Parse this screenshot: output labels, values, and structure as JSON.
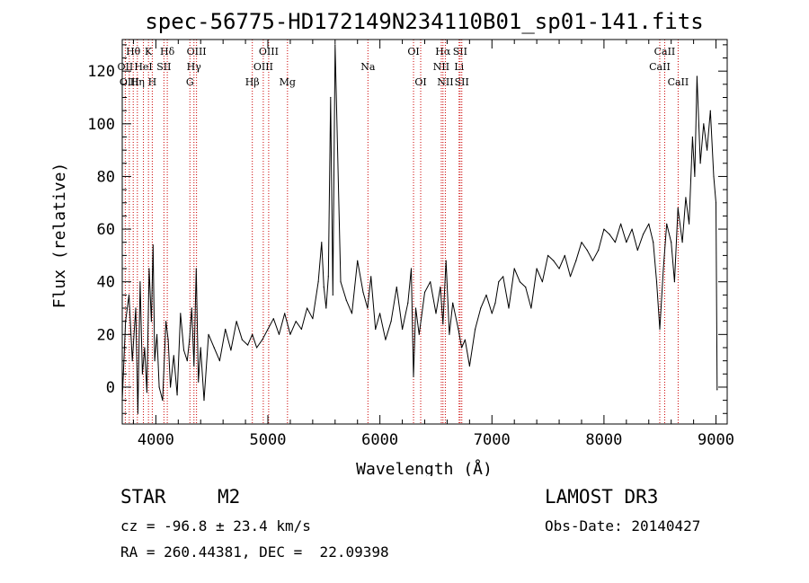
{
  "chart_data": {
    "type": "line",
    "title": "spec-56775-HD172149N234110B01_sp01-141.fits",
    "xlabel": "Wavelength (Å)",
    "ylabel": "Flux (relative)",
    "xlim": [
      3700,
      9100
    ],
    "ylim": [
      -14,
      132
    ],
    "xticks": [
      4000,
      5000,
      6000,
      7000,
      8000,
      9000
    ],
    "yticks": [
      0,
      20,
      40,
      60,
      80,
      100,
      120
    ],
    "xtick_labels": [
      "4000",
      "5000",
      "6000",
      "7000",
      "8000",
      "9000"
    ],
    "ytick_labels": [
      "0",
      "20",
      "40",
      "60",
      "80",
      "100",
      "120"
    ],
    "series": [
      {
        "name": "flux",
        "x": [
          3700,
          3730,
          3760,
          3790,
          3820,
          3840,
          3860,
          3880,
          3900,
          3920,
          3940,
          3960,
          3975,
          3990,
          4010,
          4030,
          4060,
          4090,
          4110,
          4130,
          4160,
          4190,
          4220,
          4250,
          4280,
          4300,
          4320,
          4340,
          4360,
          4380,
          4400,
          4430,
          4470,
          4520,
          4570,
          4620,
          4670,
          4720,
          4770,
          4820,
          4861,
          4900,
          4950,
          5000,
          5050,
          5100,
          5150,
          5200,
          5250,
          5300,
          5350,
          5400,
          5450,
          5480,
          5500,
          5520,
          5540,
          5560,
          5580,
          5600,
          5650,
          5700,
          5750,
          5800,
          5850,
          5890,
          5920,
          5960,
          6000,
          6050,
          6100,
          6150,
          6200,
          6250,
          6280,
          6300,
          6320,
          6350,
          6400,
          6450,
          6500,
          6540,
          6563,
          6590,
          6620,
          6650,
          6700,
          6730,
          6760,
          6800,
          6850,
          6900,
          6950,
          7000,
          7030,
          7060,
          7100,
          7150,
          7200,
          7250,
          7300,
          7350,
          7400,
          7450,
          7500,
          7550,
          7600,
          7650,
          7700,
          7750,
          7800,
          7850,
          7900,
          7950,
          8000,
          8050,
          8100,
          8150,
          8200,
          8250,
          8300,
          8350,
          8400,
          8440,
          8470,
          8498,
          8530,
          8560,
          8600,
          8630,
          8660,
          8700,
          8730,
          8760,
          8790,
          8810,
          8830,
          8860,
          8890,
          8920,
          8950,
          8980,
          9000,
          9010
        ],
        "y": [
          -5,
          25,
          35,
          10,
          30,
          -10,
          40,
          5,
          15,
          -2,
          45,
          25,
          54,
          10,
          20,
          0,
          -5,
          25,
          18,
          0,
          12,
          -3,
          28,
          14,
          10,
          18,
          30,
          8,
          45,
          2,
          15,
          -5,
          20,
          15,
          10,
          22,
          14,
          25,
          18,
          16,
          20,
          15,
          18,
          22,
          26,
          20,
          28,
          20,
          25,
          22,
          30,
          26,
          40,
          55,
          38,
          30,
          42,
          110,
          35,
          130,
          40,
          33,
          28,
          48,
          36,
          30,
          42,
          22,
          28,
          18,
          25,
          38,
          22,
          32,
          45,
          4,
          30,
          20,
          36,
          40,
          28,
          38,
          24,
          48,
          20,
          32,
          22,
          15,
          18,
          8,
          22,
          30,
          35,
          28,
          32,
          40,
          42,
          30,
          45,
          40,
          38,
          30,
          45,
          40,
          50,
          48,
          45,
          50,
          42,
          48,
          55,
          52,
          48,
          52,
          60,
          58,
          55,
          62,
          55,
          60,
          52,
          58,
          62,
          55,
          40,
          22,
          45,
          62,
          55,
          40,
          68,
          55,
          72,
          62,
          95,
          80,
          118,
          85,
          100,
          90,
          105,
          80,
          70,
          -1
        ]
      }
    ],
    "emission_lines": [
      {
        "name": "Hθ",
        "wavelength": 3798,
        "row": 1
      },
      {
        "name": "OII",
        "wavelength": 3727,
        "row": 2
      },
      {
        "name": "OIII",
        "wavelength": 3763,
        "row": 3
      },
      {
        "name": "K",
        "wavelength": 3934,
        "row": 1
      },
      {
        "name": "HeI",
        "wavelength": 3889,
        "row": 2
      },
      {
        "name": "Hη",
        "wavelength": 3835,
        "row": 3
      },
      {
        "name": "H",
        "wavelength": 3968,
        "row": 3
      },
      {
        "name": "Hδ",
        "wavelength": 4102,
        "row": 1
      },
      {
        "name": "SII",
        "wavelength": 4072,
        "row": 2
      },
      {
        "name": "OIII",
        "wavelength": 4363,
        "row": 1
      },
      {
        "name": "Hγ",
        "wavelength": 4340,
        "row": 2
      },
      {
        "name": "G",
        "wavelength": 4304,
        "row": 3
      },
      {
        "name": "OIII",
        "wavelength": 5007,
        "row": 1
      },
      {
        "name": "OIII",
        "wavelength": 4959,
        "row": 2
      },
      {
        "name": "Hβ",
        "wavelength": 4861,
        "row": 3
      },
      {
        "name": "Mg",
        "wavelength": 5175,
        "row": 3
      },
      {
        "name": "Na",
        "wavelength": 5893,
        "row": 2
      },
      {
        "name": "OI",
        "wavelength": 6300,
        "row": 1
      },
      {
        "name": "OI",
        "wavelength": 6364,
        "row": 3
      },
      {
        "name": "Hα",
        "wavelength": 6563,
        "row": 1
      },
      {
        "name": "SII",
        "wavelength": 6716,
        "row": 1
      },
      {
        "name": "NII",
        "wavelength": 6548,
        "row": 2
      },
      {
        "name": "Li",
        "wavelength": 6707,
        "row": 2
      },
      {
        "name": "NII",
        "wavelength": 6584,
        "row": 3
      },
      {
        "name": "SII",
        "wavelength": 6731,
        "row": 3
      },
      {
        "name": "CaII",
        "wavelength": 8542,
        "row": 1
      },
      {
        "name": "CaII",
        "wavelength": 8498,
        "row": 2
      },
      {
        "name": "CaII",
        "wavelength": 8662,
        "row": 3
      }
    ]
  },
  "info": {
    "object_class": "STAR",
    "subclass": "M2",
    "survey": "LAMOST DR3",
    "redshift": "cz = -96.8 ± 23.4 km/s",
    "obs_date": "Obs-Date: 20140427",
    "coords": "RA = 260.44381, DEC =  22.09398"
  },
  "colors": {
    "line": "#000000",
    "marker": "#cc0000",
    "axis": "#000000"
  }
}
